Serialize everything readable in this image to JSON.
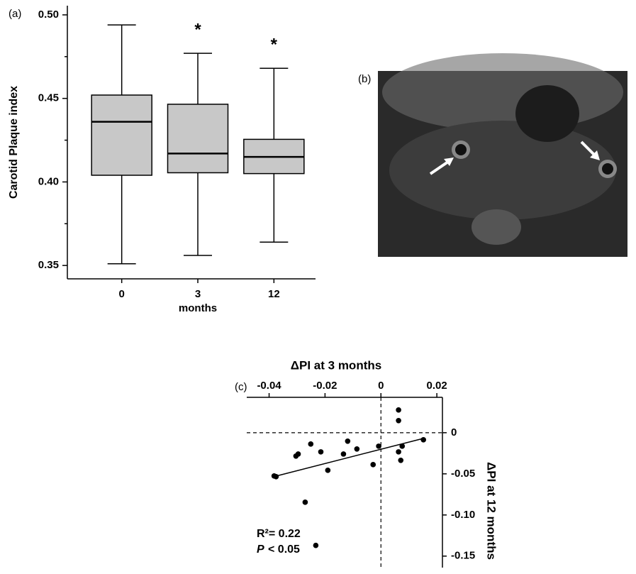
{
  "chart_data": [
    {
      "type": "box",
      "panel_label": "(a)",
      "y_label": "Carotid Plaque index",
      "x_label": "months",
      "categories": [
        "0",
        "3",
        "12"
      ],
      "whisker_low": [
        0.351,
        0.356,
        0.364
      ],
      "q1": [
        0.404,
        0.4055,
        0.405
      ],
      "median": [
        0.436,
        0.417,
        0.415
      ],
      "q3": [
        0.452,
        0.4465,
        0.4255
      ],
      "whisker_high": [
        0.494,
        0.477,
        0.468
      ],
      "markers": [
        null,
        "*",
        "*"
      ],
      "color": "#c8c8c8",
      "ylim": [
        0.342,
        0.5055
      ],
      "yticks": [
        0.35,
        {
          "value": 0.4,
          "label": "0.40"
        },
        0.45,
        {
          "value": 0.5,
          "label": "0.50"
        }
      ],
      "minor_yticks": [
        0.375,
        0.425,
        0.475
      ]
    },
    {
      "type": "scatter",
      "panel_label": "(c)",
      "x_label": "ΔPI at 3 months",
      "y_label": "ΔPI at 12 months",
      "x": [
        -0.0382,
        -0.0375,
        -0.0304,
        -0.0296,
        -0.0251,
        -0.0215,
        -0.019,
        -0.0119,
        -0.0134,
        -0.0086,
        -0.0028,
        -0.0008,
        0.0063,
        0.0063,
        0.0063,
        0.0076,
        0.0071,
        0.0152,
        -0.0271,
        -0.0233
      ],
      "y": [
        -0.0526,
        -0.0534,
        -0.0284,
        -0.0259,
        -0.0138,
        -0.0233,
        -0.0457,
        -0.0103,
        -0.0259,
        -0.0198,
        -0.0388,
        -0.0164,
        0.0276,
        0.0147,
        -0.0233,
        -0.0164,
        -0.0336,
        -0.0086,
        -0.0845,
        -0.137
      ],
      "color": "#000000",
      "trend": {
        "x": [
          -0.039,
          0.0152
        ],
        "y": [
          -0.054,
          -0.0069
        ]
      },
      "zero_lines": true,
      "xlim": [
        -0.048,
        0.022
      ],
      "ylim": [
        -0.164,
        0.043
      ],
      "xticks": [
        -0.04,
        -0.02,
        0,
        0.02
      ],
      "yticks": [
        0,
        -0.05,
        {
          "value": -0.1,
          "label": "-0.10"
        },
        -0.15
      ],
      "stats": {
        "r2": "R²= 0.22",
        "p_symbol": "P",
        "p_threshold": "< 0.05"
      }
    }
  ],
  "image_panel": {
    "label": "(b)"
  }
}
